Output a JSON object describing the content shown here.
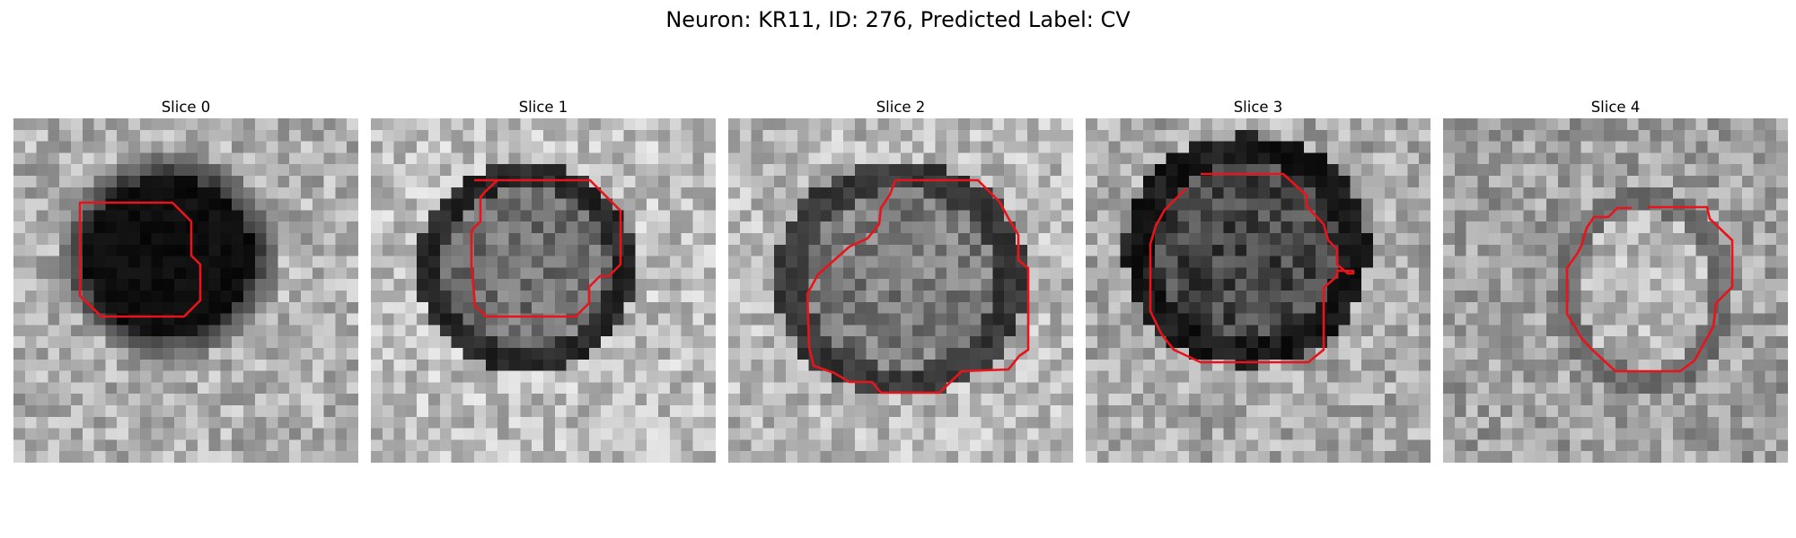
{
  "figure": {
    "title": "Neuron: KR11, ID: 276, Predicted Label: CV"
  },
  "panels": [
    {
      "title": "Slice 0",
      "contour_color": "#e8141b"
    },
    {
      "title": "Slice 1",
      "contour_color": "#e8141b"
    },
    {
      "title": "Slice 2",
      "contour_color": "#e8141b"
    },
    {
      "title": "Slice 3",
      "contour_color": "#e8141b"
    },
    {
      "title": "Slice 4",
      "contour_color": "#e8141b"
    }
  ]
}
